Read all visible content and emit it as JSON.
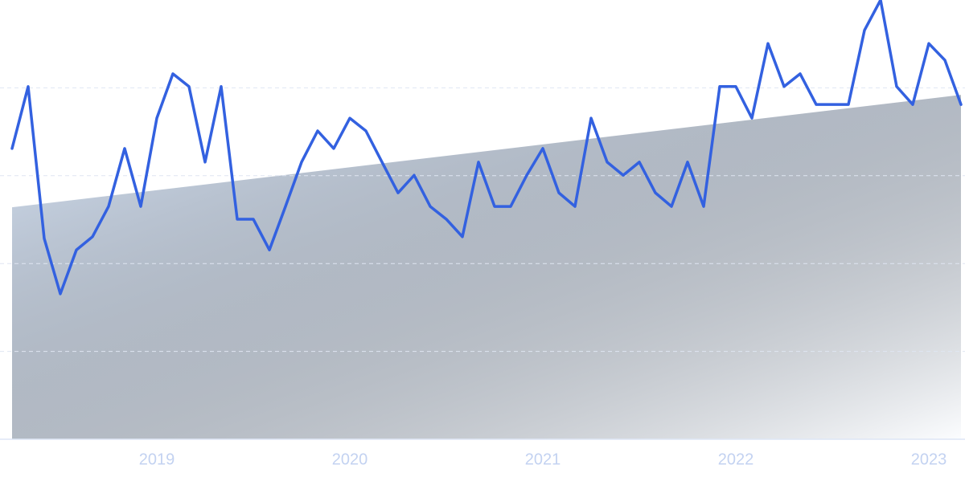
{
  "chart_data": {
    "type": "line",
    "categories": [
      null,
      null,
      null,
      null,
      null,
      null,
      null,
      null,
      null,
      "2019",
      null,
      null,
      null,
      null,
      null,
      null,
      null,
      null,
      null,
      null,
      null,
      "2020",
      null,
      null,
      null,
      null,
      null,
      null,
      null,
      null,
      null,
      null,
      null,
      "2021",
      null,
      null,
      null,
      null,
      null,
      null,
      null,
      null,
      null,
      null,
      null,
      "2022",
      null,
      null,
      null,
      null,
      null,
      null,
      null,
      null,
      null,
      null,
      null,
      "2023",
      null,
      null
    ],
    "series": [
      {
        "color": "#3361e0",
        "values": [
          66.2,
          80.3,
          45.7,
          33.1,
          43.1,
          46.1,
          53.0,
          66.2,
          53.0,
          73.1,
          83.2,
          80.3,
          63.1,
          80.3,
          50.1,
          50.1,
          43.1,
          53.0,
          63.1,
          70.2,
          66.2,
          73.1,
          70.2,
          63.1,
          56.1,
          60.1,
          53.0,
          50.1,
          46.1,
          63.1,
          53.0,
          53.0,
          60.1,
          66.2,
          56.1,
          53.0,
          73.1,
          63.1,
          60.1,
          63.1,
          56.1,
          53.0,
          63.1,
          53.0,
          80.3,
          80.3,
          73.1,
          90.1,
          80.3,
          83.2,
          76.2,
          76.2,
          76.2,
          93.1,
          100,
          80.3,
          76.2,
          90.1,
          86.3,
          76.2
        ]
      }
    ],
    "trend": {
      "color": "#dce9fb",
      "values": [
        52.8,
        78.4
      ]
    },
    "ylim": [
      0,
      100
    ],
    "yticks": [
      20,
      40,
      60,
      80
    ],
    "grid": true
  }
}
